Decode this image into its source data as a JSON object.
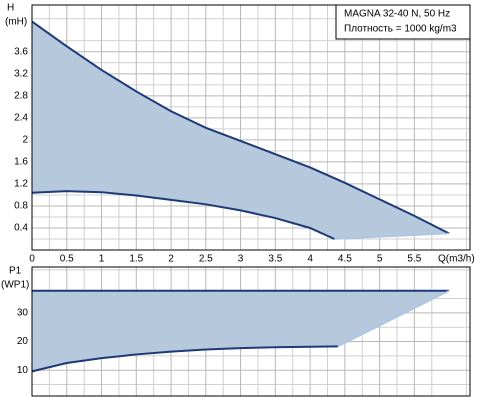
{
  "chart_data": [
    {
      "type": "range",
      "legend_lines": [
        "MAGNA 32-40 N, 50 Hz",
        "Плотность = 1000 kg/m3"
      ],
      "ylabel": "H",
      "yunit": "(mH)",
      "xlabel": "Q(m3/h)",
      "xlim": [
        0,
        6.3
      ],
      "ylim": [
        0,
        4.45
      ],
      "xticks": [
        0,
        0.5,
        1,
        1.5,
        2,
        2.5,
        3,
        3.5,
        4,
        4.5,
        5,
        5.5
      ],
      "yticks": [
        0.4,
        0.8,
        1.2,
        1.6,
        2,
        2.4,
        2.8,
        3.2,
        3.6
      ],
      "fill": "#b6c8dc",
      "grid": true,
      "series": [
        {
          "color": "#1c3a78",
          "x": [
            0,
            0.5,
            1,
            1.5,
            2,
            2.5,
            3,
            3.5,
            4,
            4.5,
            5,
            5.5,
            6
          ],
          "values": [
            4.15,
            3.7,
            3.27,
            2.88,
            2.52,
            2.22,
            1.98,
            1.74,
            1.5,
            1.22,
            0.92,
            0.62,
            0.3
          ]
        },
        {
          "color": "#1c3a78",
          "x": [
            0,
            0.5,
            1,
            1.5,
            2,
            2.5,
            3,
            3.5,
            4,
            4.35
          ],
          "values": [
            1.04,
            1.07,
            1.05,
            0.99,
            0.91,
            0.83,
            0.72,
            0.58,
            0.4,
            0.2
          ]
        },
        {
          "color": "#a9c6e6",
          "x": [
            4.35,
            6
          ],
          "values": [
            0.2,
            0.3
          ]
        }
      ]
    },
    {
      "type": "range",
      "ylabel": "P1",
      "yunit": "(WP1)",
      "xlim": [
        0,
        6.3
      ],
      "ylim": [
        1,
        46
      ],
      "yticks": [
        10,
        20,
        30
      ],
      "fill": "#b6c8dc",
      "grid": true,
      "series": [
        {
          "color": "#1c3a78",
          "x": [
            0,
            6
          ],
          "values": [
            37.7,
            37.7
          ]
        },
        {
          "color": "#1c3a78",
          "x": [
            0,
            0.5,
            1,
            1.5,
            2,
            2.5,
            3,
            3.5,
            4,
            4.4
          ],
          "values": [
            9.6,
            12.5,
            14.2,
            15.5,
            16.5,
            17.2,
            17.7,
            18,
            18.2,
            18.3
          ]
        },
        {
          "color": "#a9c6e6",
          "x": [
            4.4,
            6
          ],
          "values": [
            18.3,
            37.7
          ]
        }
      ]
    }
  ]
}
